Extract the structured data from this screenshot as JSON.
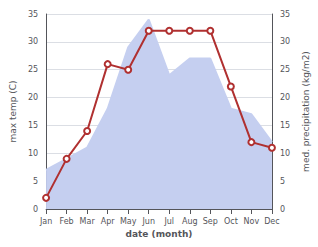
{
  "chart_data": {
    "type": "line",
    "xlabel": "date (month)",
    "ylabel": "max temp (C)",
    "y2label": "med. precipitation (kg/m2)",
    "categories": [
      "Jan",
      "Feb",
      "Mar",
      "Apr",
      "May",
      "Jun",
      "Jul",
      "Aug",
      "Sep",
      "Oct",
      "Nov",
      "Dec"
    ],
    "series": [
      {
        "type": "area",
        "axis": "y2",
        "color": "#c5cff0",
        "values": [
          7,
          9,
          11,
          18,
          29,
          34,
          24,
          27,
          27,
          18,
          17,
          12
        ]
      },
      {
        "type": "line",
        "color": "#b03030",
        "values": [
          2,
          9,
          14,
          26,
          25,
          32,
          32,
          32,
          32,
          22,
          12,
          11
        ]
      }
    ],
    "ylim": [
      0,
      35
    ],
    "yticks": [
      0,
      5,
      10,
      15,
      20,
      25,
      30,
      35
    ],
    "y2lim": [
      0,
      35
    ],
    "y2ticks": [
      0,
      5,
      10,
      15,
      20,
      25,
      30,
      35
    ],
    "grid": true
  }
}
